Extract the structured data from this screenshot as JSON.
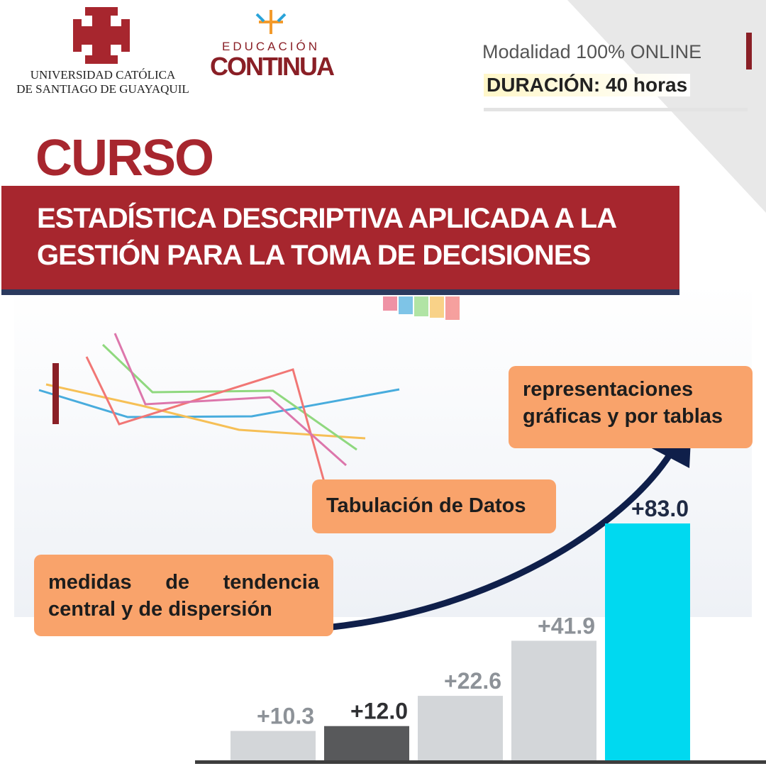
{
  "header": {
    "university": [
      "UNIVERSIDAD CATÓLICA",
      "DE SANTIAGO DE GUAYAQUIL"
    ],
    "program": [
      "EDUCACIÓN",
      "CONTINUA"
    ],
    "modality": "Modalidad 100% ONLINE",
    "duration": "DURACIÓN: 40 horas"
  },
  "course": {
    "label": "CURSO",
    "title": [
      "ESTADÍSTICA DESCRIPTIVA APLICADA A LA",
      "GESTIÓN PARA LA TOMA DE DECISIONES"
    ]
  },
  "topics": [
    [
      "representaciones",
      "gráficas y por tablas"
    ],
    [
      "Tabulación de Datos"
    ],
    [
      "medidas de tendencia",
      "central y de dispersión"
    ]
  ],
  "chart_data": {
    "type": "bar",
    "values": [
      10.3,
      12.0,
      22.6,
      41.9,
      83.0
    ],
    "value_labels": [
      "+10.3",
      "+12.0",
      "+22.6",
      "+41.9",
      "+83.0"
    ],
    "colors": [
      "#d3d6d9",
      "#58595b",
      "#d3d6d9",
      "#d3d6d9",
      "#00d9f0"
    ],
    "label_colors": [
      "#8d9298",
      "#2f3033",
      "#8d9298",
      "#8d9298",
      "#1f2a44"
    ],
    "ylim": [
      0,
      85
    ]
  }
}
